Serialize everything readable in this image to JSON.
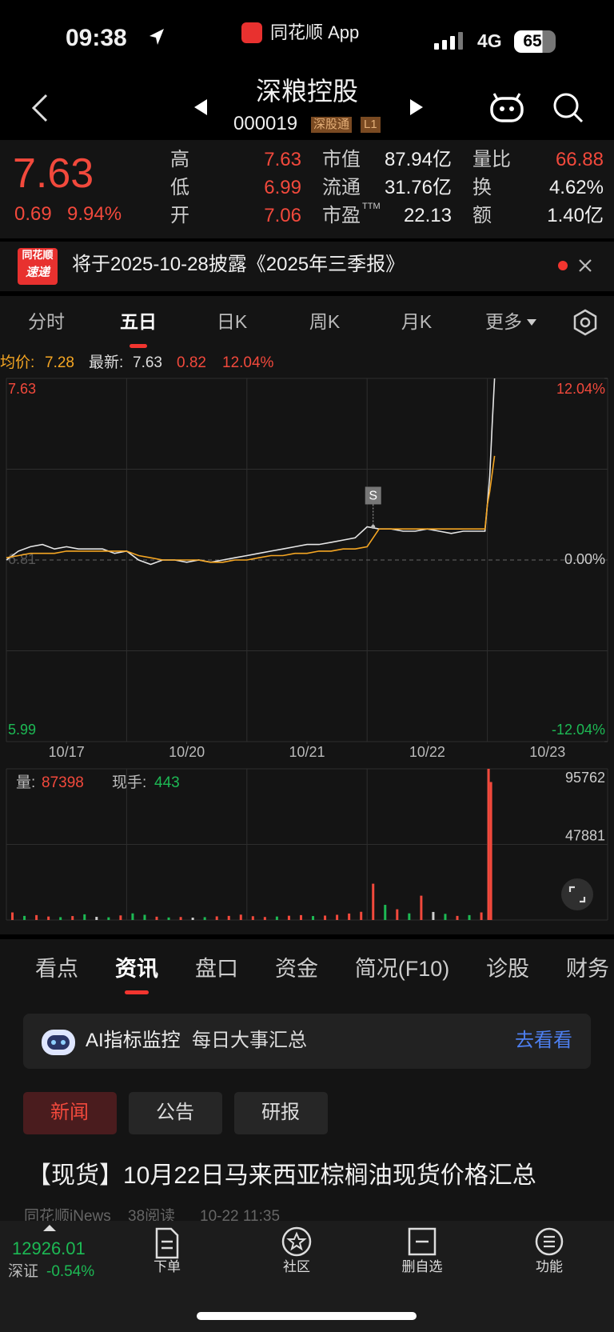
{
  "status_bar": {
    "time": "09:38",
    "app": "同花顺 App",
    "network": "4G",
    "battery": "65"
  },
  "header": {
    "title": "深粮控股",
    "code": "000019",
    "tags": [
      "深股通",
      "L1"
    ]
  },
  "quote": {
    "price": "7.63",
    "change": "0.69",
    "change_pct": "9.94%",
    "stats": [
      {
        "label": "高",
        "value": "7.63",
        "color": "#f2493c"
      },
      {
        "label": "低",
        "value": "6.99",
        "color": "#f2493c"
      },
      {
        "label": "开",
        "value": "7.06",
        "color": "#f2493c"
      },
      {
        "label": "市值",
        "value": "87.94亿",
        "color": "#f0f0f0"
      },
      {
        "label": "流通",
        "value": "31.76亿",
        "color": "#f0f0f0"
      },
      {
        "label": "市盈",
        "sup": "TTM",
        "value": "22.13",
        "color": "#f0f0f0"
      },
      {
        "label": "量比",
        "value": "66.88",
        "color": "#f2493c"
      },
      {
        "label": "换",
        "value": "4.62%",
        "color": "#f0f0f0"
      },
      {
        "label": "额",
        "value": "1.40亿",
        "color": "#f0f0f0"
      }
    ]
  },
  "notice": {
    "badge_top": "同花顺",
    "badge_bottom": "速递",
    "text": "将于2025-10-28披露《2025年三季报》"
  },
  "chart_tabs": {
    "items": [
      "分时",
      "五日",
      "日K",
      "周K",
      "月K",
      "更多"
    ],
    "active": 1
  },
  "chart_info": {
    "avg_label": "均价:",
    "avg": "7.28",
    "latest_label": "最新:",
    "latest": "7.63",
    "change": "0.82",
    "change_pct": "12.04%"
  },
  "chart_data": [
    {
      "type": "line",
      "xlim": [
        0,
        5
      ],
      "xticks": [
        {
          "value": 0.5,
          "label": "10/17"
        },
        {
          "value": 1.5,
          "label": "10/20"
        },
        {
          "value": 2.5,
          "label": "10/21"
        },
        {
          "value": 3.5,
          "label": "10/22"
        },
        {
          "value": 4.5,
          "label": "10/23"
        }
      ],
      "ylim": [
        5.99,
        7.63
      ],
      "yticks": [
        7.63,
        6.81,
        5.99
      ],
      "y2lim": [
        -12.04,
        12.04
      ],
      "y2ticks": [
        {
          "value": 12.04,
          "label": "12.04%"
        },
        {
          "value": 0,
          "label": "0.00%"
        },
        {
          "value": -12.04,
          "label": "-12.04%"
        }
      ],
      "x": [
        0,
        0.1,
        0.2,
        0.3,
        0.4,
        0.5,
        0.6,
        0.7,
        0.8,
        0.9,
        1.0,
        1.1,
        1.2,
        1.3,
        1.4,
        1.5,
        1.6,
        1.7,
        1.8,
        1.9,
        2.0,
        2.1,
        2.2,
        2.3,
        2.4,
        2.5,
        2.6,
        2.7,
        2.8,
        2.9,
        3.0,
        3.1,
        3.2,
        3.3,
        3.4,
        3.5,
        3.6,
        3.7,
        3.8,
        3.9,
        3.98,
        4.0,
        4.02,
        4.04,
        4.06
      ],
      "series": [
        {
          "color": "#e6e6e6",
          "values": [
            6.81,
            6.85,
            6.87,
            6.88,
            6.86,
            6.87,
            6.86,
            6.86,
            6.86,
            6.84,
            6.85,
            6.81,
            6.79,
            6.81,
            6.81,
            6.8,
            6.81,
            6.8,
            6.81,
            6.82,
            6.83,
            6.84,
            6.85,
            6.86,
            6.87,
            6.88,
            6.88,
            6.89,
            6.9,
            6.91,
            6.96,
            6.95,
            6.95,
            6.94,
            6.94,
            6.95,
            6.94,
            6.93,
            6.94,
            6.94,
            6.94,
            7.06,
            7.19,
            7.42,
            7.63
          ]
        },
        {
          "color": "#f5a623",
          "values": [
            6.82,
            6.83,
            6.84,
            6.84,
            6.84,
            6.85,
            6.85,
            6.85,
            6.85,
            6.85,
            6.85,
            6.83,
            6.82,
            6.81,
            6.81,
            6.81,
            6.81,
            6.8,
            6.8,
            6.81,
            6.81,
            6.82,
            6.83,
            6.83,
            6.84,
            6.84,
            6.85,
            6.85,
            6.86,
            6.86,
            6.87,
            6.95,
            6.95,
            6.95,
            6.95,
            6.95,
            6.95,
            6.95,
            6.95,
            6.95,
            6.95,
            7.06,
            7.12,
            7.2,
            7.28
          ]
        }
      ],
      "annotations": [
        {
          "text": "S",
          "x": 3.05,
          "y": 6.96
        }
      ]
    },
    {
      "type": "bar",
      "xlim": [
        0,
        5
      ],
      "ylim": [
        0,
        95762
      ],
      "yticks": [
        47881,
        95762
      ],
      "volume_label": "量:",
      "volume": "87398",
      "hand_label": "现手:",
      "hand": "443",
      "x": [
        0.05,
        0.15,
        0.25,
        0.35,
        0.45,
        0.55,
        0.65,
        0.75,
        0.85,
        0.95,
        1.05,
        1.15,
        1.25,
        1.35,
        1.45,
        1.55,
        1.65,
        1.75,
        1.85,
        1.95,
        2.05,
        2.15,
        2.25,
        2.35,
        2.45,
        2.55,
        2.65,
        2.75,
        2.85,
        2.95,
        3.05,
        3.15,
        3.25,
        3.35,
        3.45,
        3.55,
        3.65,
        3.75,
        3.85,
        3.95,
        4.01,
        4.03
      ],
      "values": [
        4800,
        2600,
        3100,
        2200,
        1800,
        2500,
        3600,
        2000,
        1700,
        2900,
        4200,
        3300,
        2100,
        1600,
        1900,
        1500,
        1800,
        2300,
        2600,
        3400,
        2400,
        1900,
        2200,
        2700,
        3100,
        2500,
        2800,
        3300,
        4100,
        5200,
        23000,
        9600,
        6800,
        4200,
        15400,
        5100,
        3900,
        2600,
        3100,
        4800,
        95762,
        87398
      ],
      "colors": [
        "#f2493c",
        "#1db954",
        "#f2493c",
        "#f2493c",
        "#1db954",
        "#f2493c",
        "#1db954",
        "#cfcfcf",
        "#1db954",
        "#f2493c",
        "#1db954",
        "#1db954",
        "#f2493c",
        "#1db954",
        "#f2493c",
        "#cfcfcf",
        "#1db954",
        "#f2493c",
        "#f2493c",
        "#f2493c",
        "#f2493c",
        "#f2493c",
        "#1db954",
        "#f2493c",
        "#f2493c",
        "#1db954",
        "#f2493c",
        "#f2493c",
        "#f2493c",
        "#f2493c",
        "#f2493c",
        "#1db954",
        "#f2493c",
        "#1db954",
        "#f2493c",
        "#cfcfcf",
        "#1db954",
        "#f2493c",
        "#1db954",
        "#f2493c",
        "#f2493c",
        "#f2493c"
      ]
    }
  ],
  "news_tabs": {
    "items": [
      "看点",
      "资讯",
      "盘口",
      "资金",
      "简况(F10)",
      "诊股",
      "财务"
    ],
    "active": 1
  },
  "ai_bar": {
    "title": "AI指标监控",
    "subtitle": "每日大事汇总",
    "action": "去看看"
  },
  "chips": {
    "items": [
      "新闻",
      "公告",
      "研报"
    ],
    "active": 0
  },
  "news": [
    {
      "title": "【现货】10月22日马来西亚棕榈油现货价格汇总",
      "source": "同花顺iNews",
      "reads": "38阅读",
      "time": "10-22 11:35"
    }
  ],
  "index": {
    "value": "12926.01",
    "name": "深证",
    "change": "-0.54%"
  },
  "nav": [
    "下单",
    "社区",
    "删自选",
    "功能"
  ]
}
